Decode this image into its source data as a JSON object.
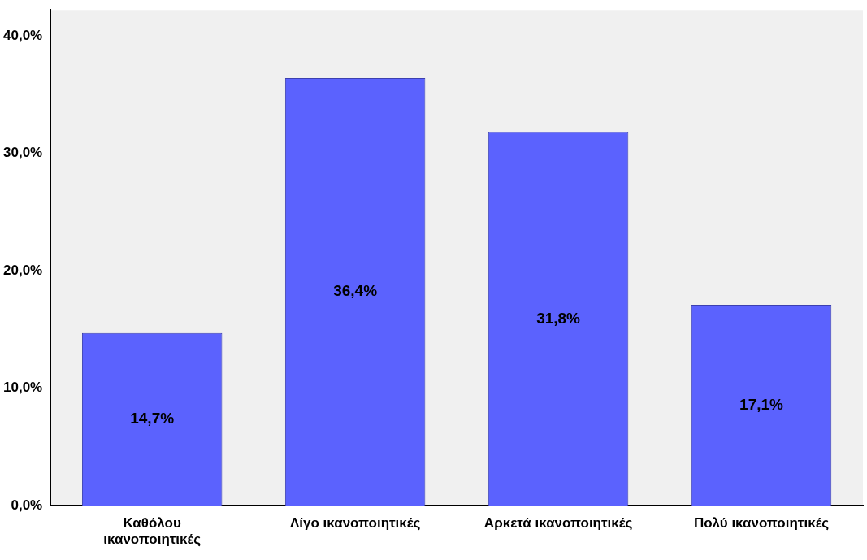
{
  "chart_data": {
    "type": "bar",
    "categories": [
      "Καθόλου ικανοποιητικές",
      "Λίγο ικανοποιητικές",
      "Αρκετά ικανοποιητικές",
      "Πολύ ικανοποιητικές"
    ],
    "values": [
      14.7,
      36.4,
      31.8,
      17.1
    ],
    "value_labels": [
      "14,7%",
      "36,4%",
      "31,8%",
      "17,1%"
    ],
    "color": "#5b62fe",
    "ylim": [
      0,
      42.2
    ],
    "yticks": [
      {
        "value": 0,
        "label": "0,0%"
      },
      {
        "value": 10,
        "label": "10,0%"
      },
      {
        "value": 20,
        "label": "20,0%"
      },
      {
        "value": 30,
        "label": "30,0%"
      },
      {
        "value": 40,
        "label": "40,0%"
      }
    ],
    "grid": false,
    "legend": false
  }
}
